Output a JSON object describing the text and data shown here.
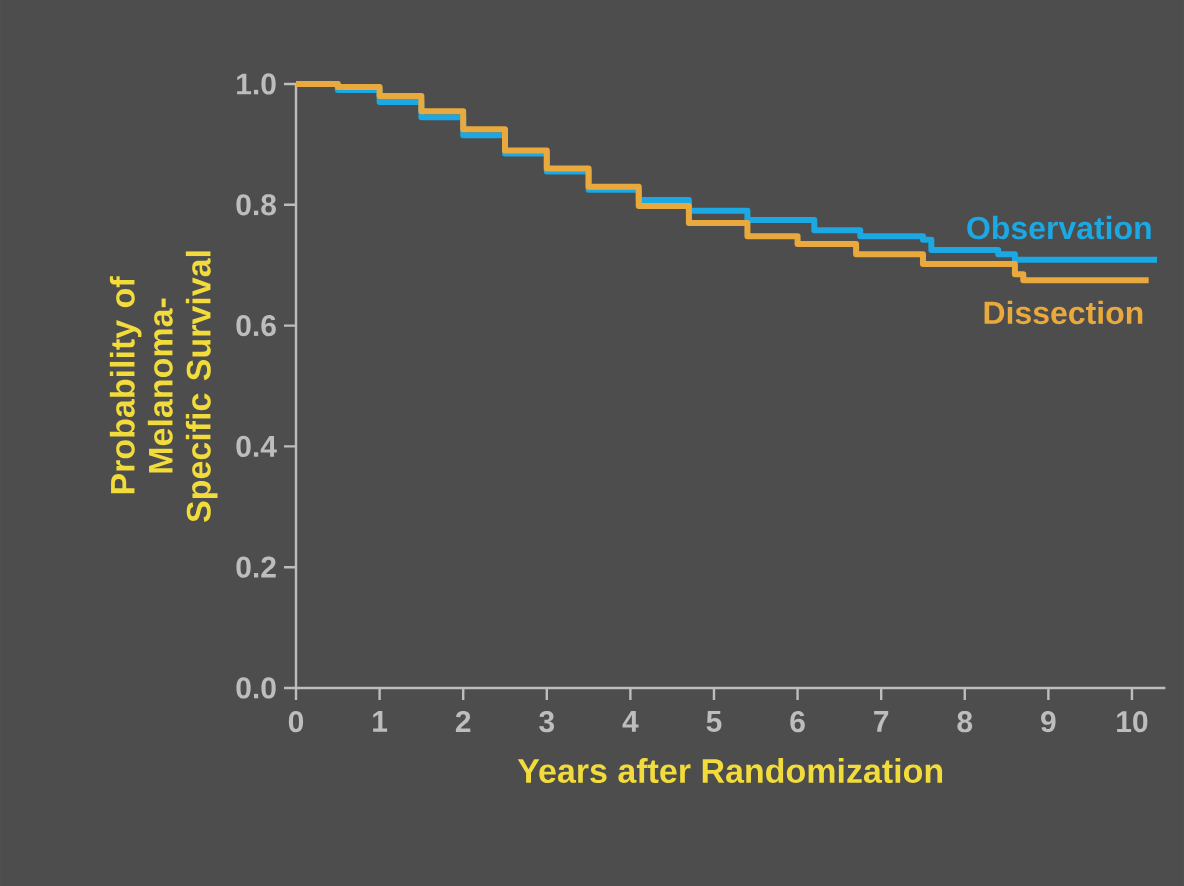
{
  "chart_data": {
    "type": "step",
    "xlabel": "Years after Randomization",
    "ylabel": "Probability of Melanoma-Specific Survival",
    "xlim": [
      0,
      10.4
    ],
    "ylim": [
      0,
      1.0
    ],
    "xticks": [
      0,
      1,
      2,
      3,
      4,
      5,
      6,
      7,
      8,
      9,
      10
    ],
    "yticks": [
      {
        "value": 0,
        "label": "0.0"
      },
      {
        "value": 0.2,
        "label": "0.2"
      },
      {
        "value": 0.4,
        "label": "0.4"
      },
      {
        "value": 0.6,
        "label": "0.6"
      },
      {
        "value": 0.8,
        "label": "0.8"
      },
      {
        "value": 1.0,
        "label": "1.0"
      }
    ],
    "grid": false,
    "series": [
      {
        "name": "Observation",
        "color": "#1ba8e3",
        "x": [
          0,
          0.5,
          1,
          1.5,
          2,
          2.5,
          3,
          3.5,
          4.1,
          4.7,
          5.4,
          6.2,
          6.75,
          7.5,
          7.6,
          8.4,
          8.6,
          10.3
        ],
        "values": [
          1.0,
          0.99,
          0.97,
          0.945,
          0.915,
          0.885,
          0.855,
          0.825,
          0.808,
          0.79,
          0.775,
          0.758,
          0.748,
          0.742,
          0.725,
          0.718,
          0.709,
          0.709
        ]
      },
      {
        "name": "Dissection",
        "color": "#e9a93c",
        "x": [
          0,
          0.5,
          1,
          1.5,
          2,
          2.5,
          3,
          3.5,
          4.1,
          4.7,
          5.4,
          6.0,
          6.7,
          7.5,
          8.6,
          8.7,
          10.2
        ],
        "values": [
          1.0,
          0.995,
          0.98,
          0.955,
          0.925,
          0.89,
          0.86,
          0.83,
          0.798,
          0.77,
          0.748,
          0.735,
          0.718,
          0.702,
          0.685,
          0.675,
          0.675
        ]
      }
    ]
  }
}
